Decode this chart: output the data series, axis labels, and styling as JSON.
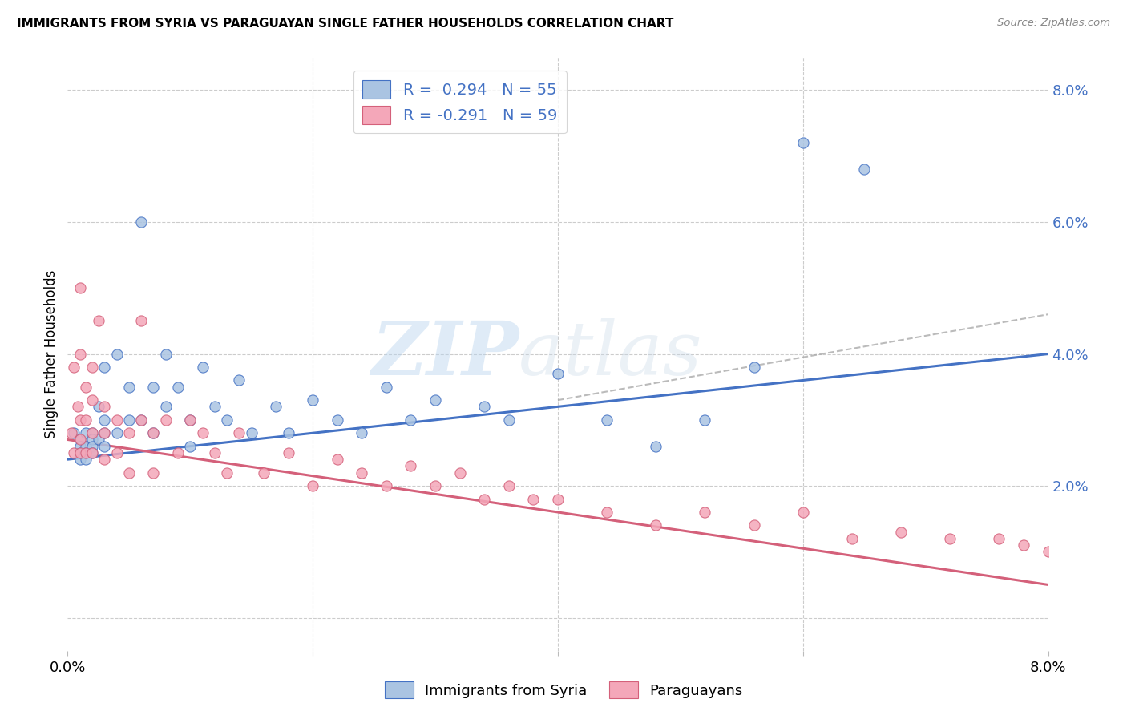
{
  "title": "IMMIGRANTS FROM SYRIA VS PARAGUAYAN SINGLE FATHER HOUSEHOLDS CORRELATION CHART",
  "source": "Source: ZipAtlas.com",
  "ylabel": "Single Father Households",
  "xlim": [
    0.0,
    0.08
  ],
  "ylim": [
    -0.005,
    0.085
  ],
  "yticks": [
    0.0,
    0.02,
    0.04,
    0.06,
    0.08
  ],
  "ytick_labels": [
    "",
    "2.0%",
    "4.0%",
    "6.0%",
    "8.0%"
  ],
  "xticks": [
    0.0,
    0.02,
    0.04,
    0.06,
    0.08
  ],
  "color_blue": "#aac4e2",
  "color_blue_line": "#4472c4",
  "color_pink": "#f4a7b9",
  "color_pink_line": "#d4607a",
  "color_dashed": "#aaaaaa",
  "watermark_zip": "ZIP",
  "watermark_atlas": "atlas",
  "syria_x": [
    0.0005,
    0.001,
    0.001,
    0.001,
    0.001,
    0.0015,
    0.0015,
    0.0015,
    0.0015,
    0.002,
    0.002,
    0.002,
    0.002,
    0.0025,
    0.0025,
    0.003,
    0.003,
    0.003,
    0.003,
    0.004,
    0.004,
    0.005,
    0.005,
    0.006,
    0.006,
    0.007,
    0.007,
    0.008,
    0.008,
    0.009,
    0.01,
    0.01,
    0.011,
    0.012,
    0.013,
    0.014,
    0.015,
    0.017,
    0.018,
    0.02,
    0.022,
    0.024,
    0.026,
    0.028,
    0.03,
    0.034,
    0.036,
    0.04,
    0.044,
    0.048,
    0.052,
    0.056,
    0.06,
    0.065
  ],
  "syria_y": [
    0.028,
    0.027,
    0.026,
    0.025,
    0.024,
    0.028,
    0.026,
    0.025,
    0.024,
    0.028,
    0.027,
    0.026,
    0.025,
    0.032,
    0.027,
    0.038,
    0.03,
    0.028,
    0.026,
    0.04,
    0.028,
    0.035,
    0.03,
    0.06,
    0.03,
    0.035,
    0.028,
    0.04,
    0.032,
    0.035,
    0.03,
    0.026,
    0.038,
    0.032,
    0.03,
    0.036,
    0.028,
    0.032,
    0.028,
    0.033,
    0.03,
    0.028,
    0.035,
    0.03,
    0.033,
    0.032,
    0.03,
    0.037,
    0.03,
    0.026,
    0.03,
    0.038,
    0.072,
    0.068
  ],
  "paraguay_x": [
    0.0003,
    0.0005,
    0.0005,
    0.0008,
    0.001,
    0.001,
    0.001,
    0.001,
    0.001,
    0.0015,
    0.0015,
    0.0015,
    0.002,
    0.002,
    0.002,
    0.002,
    0.0025,
    0.003,
    0.003,
    0.003,
    0.004,
    0.004,
    0.005,
    0.005,
    0.006,
    0.006,
    0.007,
    0.007,
    0.008,
    0.009,
    0.01,
    0.011,
    0.012,
    0.013,
    0.014,
    0.016,
    0.018,
    0.02,
    0.022,
    0.024,
    0.026,
    0.028,
    0.03,
    0.032,
    0.034,
    0.036,
    0.038,
    0.04,
    0.044,
    0.048,
    0.052,
    0.056,
    0.06,
    0.064,
    0.068,
    0.072,
    0.076,
    0.078,
    0.08
  ],
  "paraguay_y": [
    0.028,
    0.038,
    0.025,
    0.032,
    0.05,
    0.04,
    0.03,
    0.027,
    0.025,
    0.035,
    0.03,
    0.025,
    0.038,
    0.033,
    0.028,
    0.025,
    0.045,
    0.032,
    0.028,
    0.024,
    0.03,
    0.025,
    0.028,
    0.022,
    0.045,
    0.03,
    0.028,
    0.022,
    0.03,
    0.025,
    0.03,
    0.028,
    0.025,
    0.022,
    0.028,
    0.022,
    0.025,
    0.02,
    0.024,
    0.022,
    0.02,
    0.023,
    0.02,
    0.022,
    0.018,
    0.02,
    0.018,
    0.018,
    0.016,
    0.014,
    0.016,
    0.014,
    0.016,
    0.012,
    0.013,
    0.012,
    0.012,
    0.011,
    0.01
  ],
  "syria_line_x": [
    0.0,
    0.08
  ],
  "syria_line_y": [
    0.024,
    0.04
  ],
  "paraguay_line_x": [
    0.0,
    0.08
  ],
  "paraguay_line_y": [
    0.027,
    0.005
  ],
  "dashed_line_x": [
    0.04,
    0.08
  ],
  "dashed_line_y": [
    0.033,
    0.046
  ]
}
